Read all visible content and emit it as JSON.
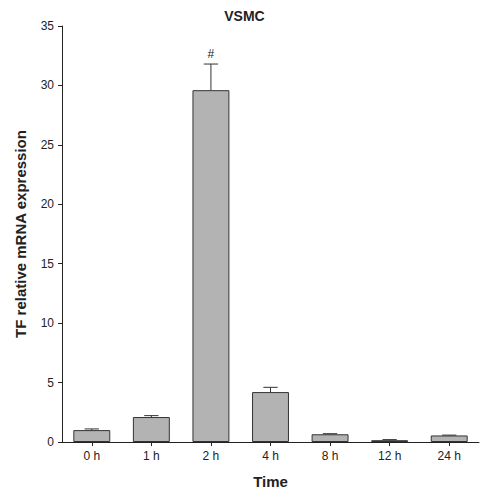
{
  "chart_data": {
    "type": "bar",
    "title": "VSMC",
    "x_label": "Time",
    "y_label": "TF relative mRNA expression",
    "categories": [
      "0 h",
      "1 h",
      "2 h",
      "4 h",
      "8 h",
      "12 h",
      "24 h"
    ],
    "values": [
      1.0,
      2.1,
      29.6,
      4.2,
      0.65,
      0.15,
      0.55
    ],
    "errors": [
      0.1,
      0.12,
      2.2,
      0.4,
      0.05,
      0.05,
      0.03
    ],
    "annotations": [
      {
        "x": "2 h",
        "text": "#"
      }
    ],
    "color": "#b3b3b3",
    "ylim": [
      0,
      35
    ],
    "yticks": [
      0,
      5,
      10,
      15,
      20,
      25,
      30,
      35
    ],
    "grid": false
  }
}
